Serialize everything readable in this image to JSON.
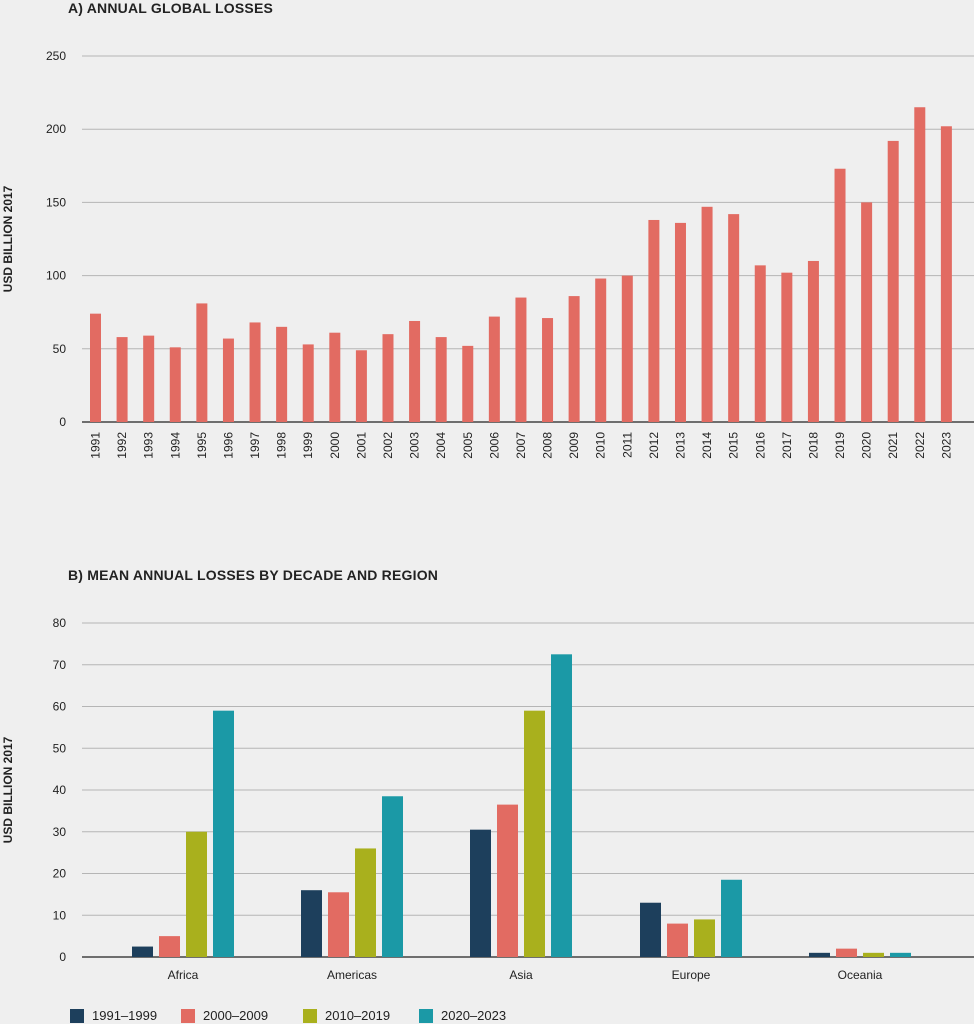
{
  "chart_data": [
    {
      "type": "bar",
      "title": "A) ANNUAL GLOBAL LOSSES",
      "xlabel": "",
      "ylabel": "USD BILLION 2017",
      "ylim": [
        0,
        250
      ],
      "yticks": [
        0,
        50,
        100,
        150,
        200,
        250
      ],
      "color": "#e26b62",
      "categories": [
        "1991",
        "1992",
        "1993",
        "1994",
        "1995",
        "1996",
        "1997",
        "1998",
        "1999",
        "2000",
        "2001",
        "2002",
        "2003",
        "2004",
        "2005",
        "2006",
        "2007",
        "2008",
        "2009",
        "2010",
        "2011",
        "2012",
        "2013",
        "2014",
        "2015",
        "2016",
        "2017",
        "2018",
        "2019",
        "2020",
        "2021",
        "2022",
        "2023"
      ],
      "values": [
        74,
        58,
        59,
        51,
        81,
        57,
        68,
        65,
        53,
        61,
        49,
        60,
        69,
        58,
        52,
        72,
        85,
        71,
        86,
        98,
        100,
        138,
        136,
        147,
        142,
        107,
        102,
        110,
        173,
        150,
        192,
        215,
        202
      ]
    },
    {
      "type": "bar",
      "title": "B) MEAN ANNUAL LOSSES BY DECADE AND REGION",
      "xlabel": "",
      "ylabel": "USD BILLION 2017",
      "ylim": [
        0,
        80
      ],
      "yticks": [
        0,
        10,
        20,
        30,
        40,
        50,
        60,
        70,
        80
      ],
      "categories": [
        "Africa",
        "Americas",
        "Asia",
        "Europe",
        "Oceania"
      ],
      "series": [
        {
          "name": "1991–1999",
          "color": "#1d3f5c",
          "values": [
            2.5,
            16,
            30.5,
            13,
            1
          ]
        },
        {
          "name": "2000–2009",
          "color": "#e26b62",
          "values": [
            5,
            15.5,
            36.5,
            8,
            2
          ]
        },
        {
          "name": "2010–2019",
          "color": "#a9b01d",
          "values": [
            30,
            26,
            59,
            9,
            1
          ]
        },
        {
          "name": "2020–2023",
          "color": "#1b99a6",
          "values": [
            59,
            38.5,
            72.5,
            18.5,
            1
          ]
        }
      ],
      "legend_position": "bottom-left"
    }
  ]
}
